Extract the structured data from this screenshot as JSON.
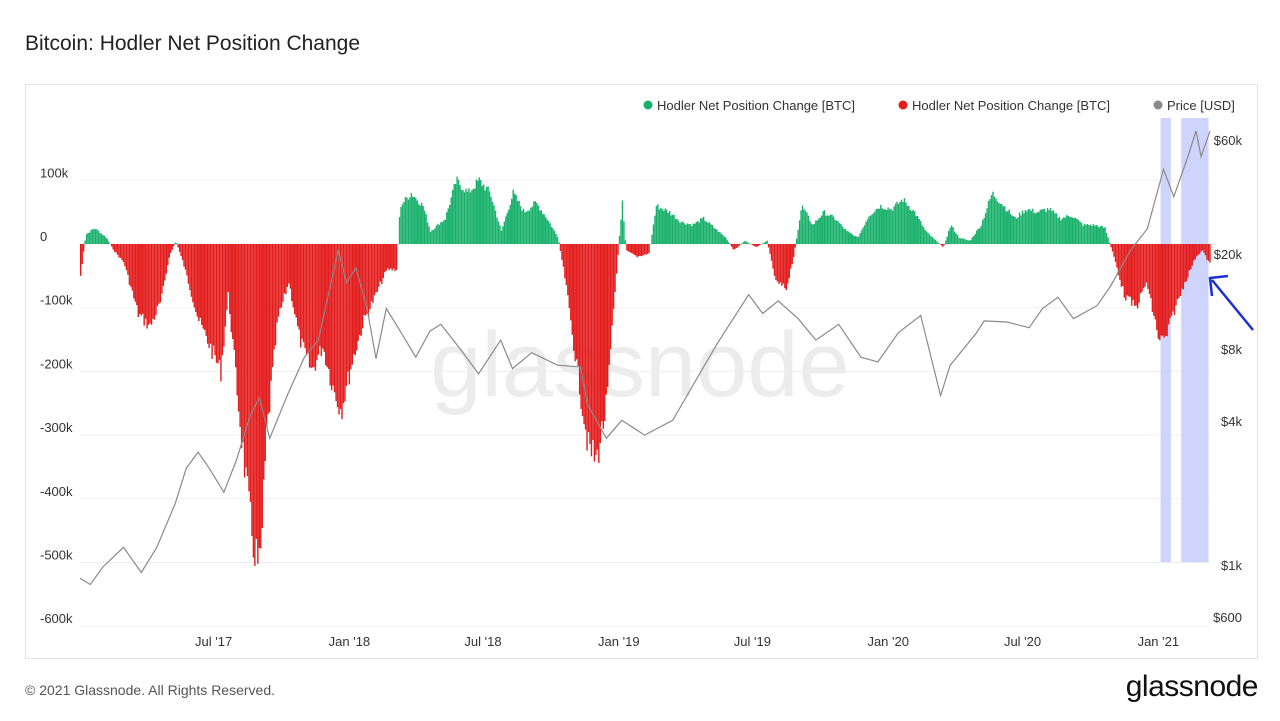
{
  "title": "Bitcoin: Hodler Net Position Change",
  "footer": "© 2021 Glassnode. All Rights Reserved.",
  "brand": "glassnode",
  "watermark": "glassnode",
  "colors": {
    "positive": "#18b06b",
    "negative": "#e31b1b",
    "price": "#8a8a8a",
    "highlight": "#c6cdfa",
    "arrow": "#1b2fd6"
  },
  "chart_data": {
    "type": "bar",
    "title": "Bitcoin: Hodler Net Position Change",
    "x_ticks": [
      "Jul '17",
      "Jan '18",
      "Jul '18",
      "Jan '19",
      "Jul '19",
      "Jan '20",
      "Jul '20",
      "Jan '21"
    ],
    "x_range": [
      "2017-01-01",
      "2021-03-12"
    ],
    "y_left": {
      "ticks": [
        100000,
        0,
        -100000,
        -200000,
        -300000,
        -400000,
        -500000,
        -600000
      ],
      "tick_labels": [
        "100k",
        "0",
        "-100k",
        "-200k",
        "-300k",
        "-400k",
        "-500k",
        "-600k"
      ],
      "range": [
        -600000,
        200000
      ]
    },
    "y_right": {
      "scale": "log",
      "ticks": [
        60000,
        20000,
        8000,
        4000,
        1000,
        600
      ],
      "tick_labels": [
        "$60k",
        "$20k",
        "$8k",
        "$4k",
        "$1k",
        "$600"
      ]
    },
    "legend": [
      {
        "label": "Hodler Net Position Change [BTC]",
        "color": "#18b06b"
      },
      {
        "label": "Hodler Net Position Change [BTC]",
        "color": "#e31b1b"
      },
      {
        "label": "Price [USD]",
        "color": "#8a8a8a"
      }
    ],
    "legend_position": "top-right",
    "series": [
      {
        "name": "Hodler Net Position Change [BTC]",
        "key_points": [
          [
            "2017-01-01",
            -50000
          ],
          [
            "2017-01-08",
            15000
          ],
          [
            "2017-01-20",
            25000
          ],
          [
            "2017-02-05",
            10000
          ],
          [
            "2017-02-15",
            -10000
          ],
          [
            "2017-03-01",
            -30000
          ],
          [
            "2017-03-20",
            -110000
          ],
          [
            "2017-04-05",
            -130000
          ],
          [
            "2017-04-20",
            -90000
          ],
          [
            "2017-05-01",
            -20000
          ],
          [
            "2017-05-10",
            5000
          ],
          [
            "2017-05-20",
            -30000
          ],
          [
            "2017-06-10",
            -120000
          ],
          [
            "2017-06-25",
            -160000
          ],
          [
            "2017-07-10",
            -200000
          ],
          [
            "2017-07-20",
            -80000
          ],
          [
            "2017-08-05",
            -280000
          ],
          [
            "2017-08-20",
            -450000
          ],
          [
            "2017-09-01",
            -520000
          ],
          [
            "2017-09-10",
            -300000
          ],
          [
            "2017-09-25",
            -120000
          ],
          [
            "2017-10-10",
            -60000
          ],
          [
            "2017-10-25",
            -150000
          ],
          [
            "2017-11-10",
            -200000
          ],
          [
            "2017-11-25",
            -160000
          ],
          [
            "2017-12-10",
            -230000
          ],
          [
            "2017-12-20",
            -260000
          ],
          [
            "2018-01-05",
            -180000
          ],
          [
            "2018-01-20",
            -120000
          ],
          [
            "2018-02-05",
            -80000
          ],
          [
            "2018-02-20",
            -40000
          ],
          [
            "2018-03-05",
            -40000
          ],
          [
            "2018-03-10",
            60000
          ],
          [
            "2018-03-25",
            80000
          ],
          [
            "2018-04-10",
            60000
          ],
          [
            "2018-04-20",
            20000
          ],
          [
            "2018-05-10",
            40000
          ],
          [
            "2018-05-25",
            100000
          ],
          [
            "2018-06-10",
            80000
          ],
          [
            "2018-06-25",
            100000
          ],
          [
            "2018-07-10",
            80000
          ],
          [
            "2018-07-25",
            20000
          ],
          [
            "2018-08-10",
            80000
          ],
          [
            "2018-08-25",
            50000
          ],
          [
            "2018-09-10",
            65000
          ],
          [
            "2018-09-25",
            40000
          ],
          [
            "2018-10-10",
            10000
          ],
          [
            "2018-10-20",
            -60000
          ],
          [
            "2018-11-05",
            -200000
          ],
          [
            "2018-11-20",
            -320000
          ],
          [
            "2018-12-01",
            -340000
          ],
          [
            "2018-12-15",
            -250000
          ],
          [
            "2018-12-25",
            -90000
          ],
          [
            "2019-01-05",
            70000
          ],
          [
            "2019-01-10",
            -10000
          ],
          [
            "2019-01-25",
            -20000
          ],
          [
            "2019-02-10",
            -15000
          ],
          [
            "2019-02-20",
            60000
          ],
          [
            "2019-03-10",
            50000
          ],
          [
            "2019-03-25",
            35000
          ],
          [
            "2019-04-10",
            30000
          ],
          [
            "2019-04-25",
            40000
          ],
          [
            "2019-05-10",
            25000
          ],
          [
            "2019-05-25",
            10000
          ],
          [
            "2019-06-05",
            -10000
          ],
          [
            "2019-06-20",
            5000
          ],
          [
            "2019-07-05",
            -5000
          ],
          [
            "2019-07-20",
            5000
          ],
          [
            "2019-08-01",
            -60000
          ],
          [
            "2019-08-15",
            -70000
          ],
          [
            "2019-08-25",
            -20000
          ],
          [
            "2019-09-05",
            60000
          ],
          [
            "2019-09-20",
            30000
          ],
          [
            "2019-10-05",
            50000
          ],
          [
            "2019-10-20",
            40000
          ],
          [
            "2019-11-05",
            20000
          ],
          [
            "2019-11-20",
            10000
          ],
          [
            "2019-12-05",
            45000
          ],
          [
            "2019-12-20",
            60000
          ],
          [
            "2020-01-05",
            55000
          ],
          [
            "2020-01-20",
            70000
          ],
          [
            "2020-02-05",
            50000
          ],
          [
            "2020-02-20",
            20000
          ],
          [
            "2020-03-05",
            5000
          ],
          [
            "2020-03-15",
            -5000
          ],
          [
            "2020-03-25",
            30000
          ],
          [
            "2020-04-05",
            10000
          ],
          [
            "2020-04-20",
            5000
          ],
          [
            "2020-05-05",
            30000
          ],
          [
            "2020-05-20",
            80000
          ],
          [
            "2020-06-05",
            60000
          ],
          [
            "2020-06-20",
            40000
          ],
          [
            "2020-07-05",
            55000
          ],
          [
            "2020-07-20",
            50000
          ],
          [
            "2020-08-05",
            55000
          ],
          [
            "2020-08-20",
            40000
          ],
          [
            "2020-09-05",
            45000
          ],
          [
            "2020-09-20",
            30000
          ],
          [
            "2020-10-05",
            30000
          ],
          [
            "2020-10-20",
            25000
          ],
          [
            "2020-11-01",
            -20000
          ],
          [
            "2020-11-15",
            -80000
          ],
          [
            "2020-12-01",
            -100000
          ],
          [
            "2020-12-15",
            -60000
          ],
          [
            "2021-01-01",
            -150000
          ],
          [
            "2021-01-10",
            -150000
          ],
          [
            "2021-01-20",
            -110000
          ],
          [
            "2021-02-05",
            -60000
          ],
          [
            "2021-02-20",
            -20000
          ],
          [
            "2021-03-01",
            -10000
          ],
          [
            "2021-03-10",
            -30000
          ]
        ]
      },
      {
        "name": "Price [USD]",
        "key_points": [
          [
            "2017-01-01",
            900
          ],
          [
            "2017-01-15",
            850
          ],
          [
            "2017-02-01",
            1000
          ],
          [
            "2017-03-01",
            1200
          ],
          [
            "2017-03-25",
            950
          ],
          [
            "2017-04-15",
            1200
          ],
          [
            "2017-05-10",
            1800
          ],
          [
            "2017-05-25",
            2500
          ],
          [
            "2017-06-10",
            2900
          ],
          [
            "2017-06-25",
            2500
          ],
          [
            "2017-07-15",
            2000
          ],
          [
            "2017-08-01",
            2700
          ],
          [
            "2017-08-20",
            4100
          ],
          [
            "2017-09-01",
            4800
          ],
          [
            "2017-09-15",
            3300
          ],
          [
            "2017-10-10",
            5000
          ],
          [
            "2017-11-01",
            7000
          ],
          [
            "2017-11-20",
            8200
          ],
          [
            "2017-12-17",
            19000
          ],
          [
            "2017-12-28",
            14000
          ],
          [
            "2018-01-10",
            16000
          ],
          [
            "2018-01-25",
            11000
          ],
          [
            "2018-02-06",
            6900
          ],
          [
            "2018-02-20",
            11000
          ],
          [
            "2018-03-10",
            9000
          ],
          [
            "2018-04-01",
            7000
          ],
          [
            "2018-04-20",
            8900
          ],
          [
            "2018-05-05",
            9500
          ],
          [
            "2018-06-01",
            7500
          ],
          [
            "2018-06-25",
            6000
          ],
          [
            "2018-07-25",
            8200
          ],
          [
            "2018-08-10",
            6300
          ],
          [
            "2018-09-05",
            7300
          ],
          [
            "2018-10-10",
            6500
          ],
          [
            "2018-11-10",
            6400
          ],
          [
            "2018-11-20",
            4500
          ],
          [
            "2018-12-15",
            3300
          ],
          [
            "2019-01-05",
            3900
          ],
          [
            "2019-02-05",
            3400
          ],
          [
            "2019-03-15",
            3900
          ],
          [
            "2019-04-05",
            5000
          ],
          [
            "2019-05-15",
            8000
          ],
          [
            "2019-06-26",
            12500
          ],
          [
            "2019-07-15",
            10500
          ],
          [
            "2019-08-05",
            11800
          ],
          [
            "2019-09-01",
            10000
          ],
          [
            "2019-09-25",
            8200
          ],
          [
            "2019-10-26",
            9500
          ],
          [
            "2019-11-25",
            7000
          ],
          [
            "2019-12-18",
            6700
          ],
          [
            "2020-01-15",
            8800
          ],
          [
            "2020-02-14",
            10300
          ],
          [
            "2020-03-12",
            4900
          ],
          [
            "2020-03-25",
            6500
          ],
          [
            "2020-04-30",
            8800
          ],
          [
            "2020-05-10",
            9800
          ],
          [
            "2020-06-10",
            9700
          ],
          [
            "2020-07-10",
            9200
          ],
          [
            "2020-07-28",
            11000
          ],
          [
            "2020-08-18",
            12200
          ],
          [
            "2020-09-08",
            10000
          ],
          [
            "2020-10-10",
            11300
          ],
          [
            "2020-10-28",
            13500
          ],
          [
            "2020-11-25",
            19000
          ],
          [
            "2020-12-17",
            23000
          ],
          [
            "2021-01-08",
            40000
          ],
          [
            "2021-01-22",
            31000
          ],
          [
            "2021-02-10",
            45000
          ],
          [
            "2021-02-21",
            57000
          ],
          [
            "2021-02-28",
            45000
          ],
          [
            "2021-03-12",
            57000
          ]
        ]
      }
    ],
    "highlight_ranges": [
      [
        "2021-01-04",
        "2021-01-18"
      ],
      [
        "2021-02-01",
        "2021-03-10"
      ]
    ]
  }
}
